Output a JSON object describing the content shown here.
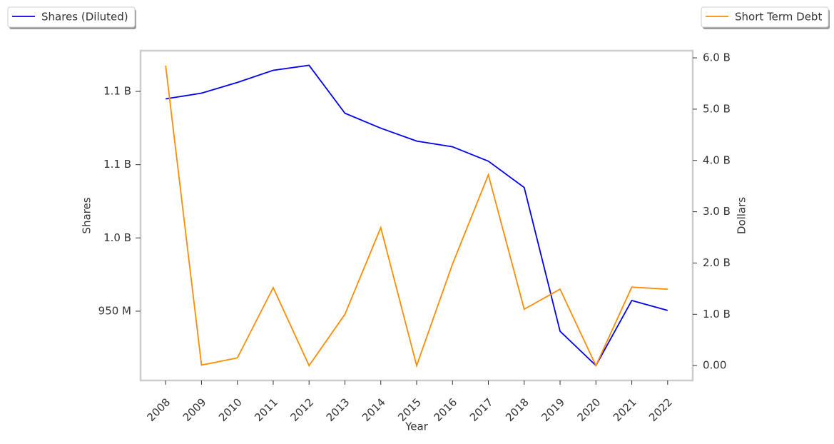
{
  "chart_data": {
    "type": "line",
    "x_label": "Year",
    "y_label": "Shares",
    "y2_label": "Dollars",
    "x": [
      2008,
      2009,
      2010,
      2011,
      2012,
      2013,
      2014,
      2015,
      2016,
      2017,
      2018,
      2019,
      2020,
      2021,
      2022
    ],
    "xlim": [
      2007.3,
      2022.7
    ],
    "xticks": [
      2008,
      2009,
      2010,
      2011,
      2012,
      2013,
      2014,
      2015,
      2016,
      2017,
      2018,
      2019,
      2020,
      2021,
      2022
    ],
    "ylim": [
      902700000,
      1127800000
    ],
    "yticks": [
      {
        "value": 950000000,
        "label": "950 M"
      },
      {
        "value": 1000000000,
        "label": "1.0 B"
      },
      {
        "value": 1050000000,
        "label": "1.1 B"
      },
      {
        "value": 1100000000,
        "label": "1.1 B"
      }
    ],
    "y2lim": [
      -290000000,
      6140000000
    ],
    "y2ticks": [
      {
        "value": 0,
        "label": "0.00"
      },
      {
        "value": 1000000000,
        "label": "1.0 B"
      },
      {
        "value": 2000000000,
        "label": "2.0 B"
      },
      {
        "value": 3000000000,
        "label": "3.0 B"
      },
      {
        "value": 4000000000,
        "label": "4.0 B"
      },
      {
        "value": 5000000000,
        "label": "5.0 B"
      },
      {
        "value": 6000000000,
        "label": "6.0 B"
      }
    ],
    "series": [
      {
        "name": "Shares (Diluted)",
        "color": "#0000ee",
        "axis": "y",
        "legend": "upper left",
        "values": [
          1094900000,
          1098800000,
          1106100000,
          1114400000,
          1117800000,
          1085100000,
          1074900000,
          1066100000,
          1062200000,
          1052400000,
          1034400000,
          936300000,
          912900000,
          957300000,
          950500000
        ]
      },
      {
        "name": "Short Term Debt",
        "color": "#ff8c00",
        "axis": "y2",
        "legend": "upper right",
        "values": [
          5850000000,
          10000000,
          150000000,
          1520000000,
          0,
          1000000000,
          2690000000,
          0,
          1980000000,
          3720000000,
          1100000000,
          1490000000,
          0,
          1530000000,
          1490000000
        ]
      }
    ]
  }
}
